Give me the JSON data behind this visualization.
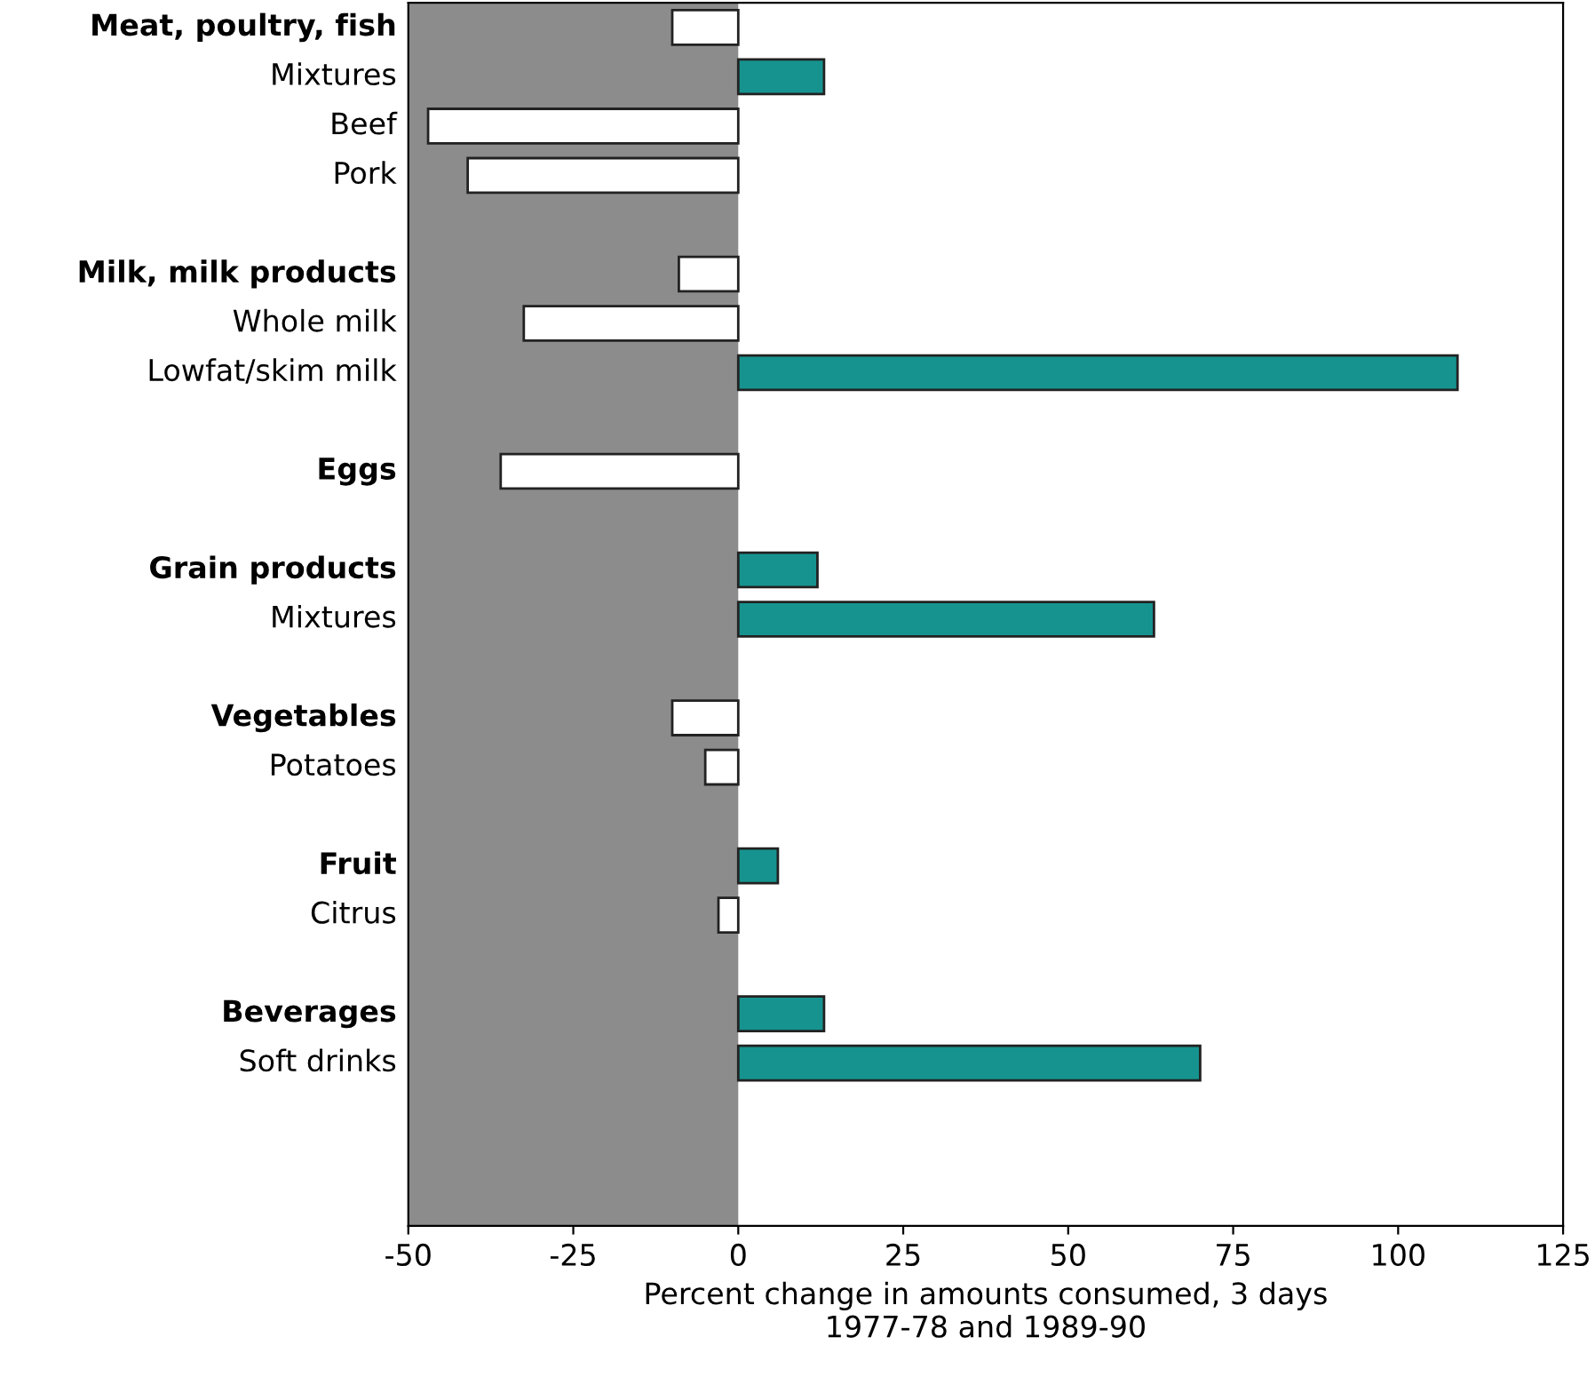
{
  "chart_data": {
    "type": "bar",
    "orientation": "horizontal",
    "categories": [
      "Meat, poultry, fish",
      "Mixtures",
      "Beef",
      "Pork",
      null,
      "Milk, milk products",
      "Whole milk",
      "Lowfat/skim milk",
      null,
      "Eggs",
      null,
      "Grain products",
      "Mixtures",
      null,
      "Vegetables",
      "Potatoes",
      null,
      "Fruit",
      "Citrus",
      null,
      "Beverages",
      "Soft drinks"
    ],
    "values": [
      -10,
      13,
      -47,
      -41,
      null,
      -9,
      -32.5,
      109,
      null,
      -36,
      null,
      12,
      63,
      null,
      -10,
      -5,
      null,
      6,
      -3,
      null,
      13,
      70
    ],
    "colors": [
      "#ffffff",
      "#16938f",
      "#ffffff",
      "#ffffff",
      null,
      "#ffffff",
      "#ffffff",
      "#16938f",
      null,
      "#ffffff",
      null,
      "#16938f",
      "#16938f",
      null,
      "#ffffff",
      "#ffffff",
      null,
      "#16938f",
      "#ffffff",
      null,
      "#16938f",
      "#16938f"
    ],
    "xlabel": "Percent change in amounts consumed, 3 days\n1977-78 and 1989-90",
    "xlim": [
      -50,
      125
    ],
    "xticks": [
      -50,
      -25,
      0,
      25,
      50,
      75,
      100,
      125
    ],
    "bands": [
      {
        "axis": "x",
        "from": -50,
        "to": 0,
        "label": null,
        "color": "#8c8c8c"
      }
    ],
    "grid": false
  }
}
